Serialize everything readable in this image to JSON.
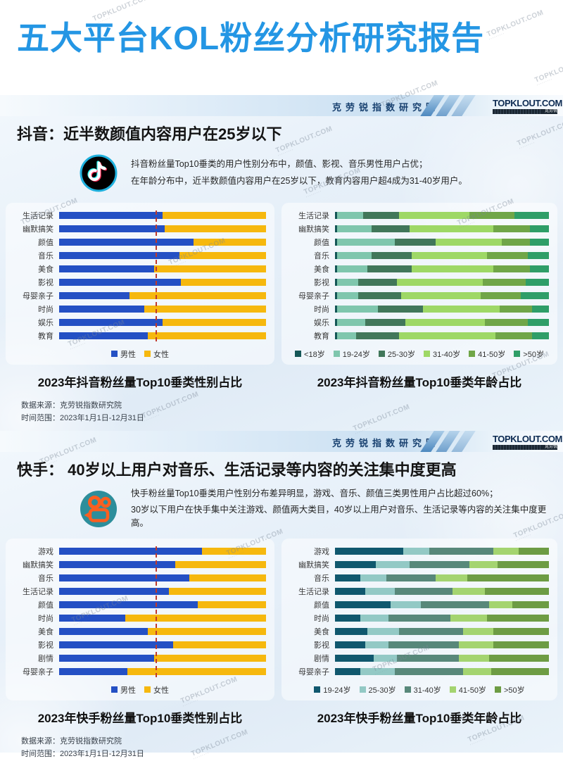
{
  "page_title": "五大平台KOL粉丝分析研究报告",
  "header": {
    "institute": "克劳锐指数研究院",
    "logo": "TOPKLOUT.COM",
    "logo_suffix": "克劳锐"
  },
  "watermark": {
    "text": "TOPKLOUT.COM"
  },
  "sections": [
    {
      "platform": "抖音",
      "heading": "抖音：近半数颜值内容用户在25岁以下",
      "description": [
        "抖音粉丝量Top10垂类的用户性别分布中，颜值、影视、音乐男性用户占优；",
        "在年龄分布中，近半数颜值内容用户在25岁以下，教育内容用户超4成为31-40岁用户。"
      ],
      "source": [
        "数据来源：克劳锐指数研究院",
        "时间范围：2023年1月1日-12月31日"
      ]
    },
    {
      "platform": "快手",
      "heading": "快手： 40岁以上用户对音乐、生活记录等内容的关注集中度更高",
      "description": [
        "快手粉丝量Top10垂类用户性别分布差异明显，游戏、音乐、颜值三类男性用户占比超过60%；",
        "30岁以下用户在快手集中关注游戏、颜值两大类目，40岁以上用户对音乐、生活记录等内容的关注集中度更高。"
      ],
      "source": [
        "数据来源：克劳锐指数研究院",
        "时间范围：2023年1月1日-12月31日"
      ]
    }
  ],
  "chart_data": [
    {
      "id": "douyin-gender",
      "type": "bar",
      "stacked": true,
      "orientation": "horizontal",
      "title": "2023年抖音粉丝量Top10垂类性别占比",
      "unit": "%",
      "xlim": [
        0,
        100
      ],
      "grid": false,
      "legend_position": "bottom",
      "reference_line": {
        "value": 46.5,
        "style": "dashed",
        "color": "#c0392b"
      },
      "categories": [
        "生活记录",
        "幽默搞笑",
        "颜值",
        "音乐",
        "美食",
        "影视",
        "母婴亲子",
        "时尚",
        "娱乐",
        "教育"
      ],
      "series": [
        {
          "name": "男性",
          "color": "#2450c4",
          "values": [
            50,
            51,
            65,
            58,
            46,
            59,
            34,
            41,
            50,
            43
          ]
        },
        {
          "name": "女性",
          "color": "#f6b80e",
          "values": [
            50,
            49,
            35,
            42,
            54,
            41,
            66,
            59,
            50,
            57
          ]
        }
      ]
    },
    {
      "id": "douyin-age",
      "type": "bar",
      "stacked": true,
      "orientation": "horizontal",
      "title": "2023年抖音粉丝量Top10垂类年龄占比",
      "unit": "%",
      "xlim": [
        0,
        100
      ],
      "grid": false,
      "legend_position": "bottom",
      "categories": [
        "生活记录",
        "幽默搞笑",
        "颜值",
        "音乐",
        "美食",
        "影视",
        "母婴亲子",
        "时尚",
        "娱乐",
        "教育"
      ],
      "series": [
        {
          "name": "<18岁",
          "color": "#155757",
          "values": [
            1,
            1,
            1,
            1,
            1,
            1,
            1,
            1,
            1,
            1
          ]
        },
        {
          "name": "19-24岁",
          "color": "#7fc6ad",
          "values": [
            12,
            16,
            27,
            16,
            14,
            10,
            10,
            19,
            13,
            9
          ]
        },
        {
          "name": "25-30岁",
          "color": "#41775a",
          "values": [
            17,
            18,
            19,
            19,
            21,
            18,
            20,
            21,
            19,
            20
          ]
        },
        {
          "name": "31-40岁",
          "color": "#9ed866",
          "values": [
            33,
            39,
            31,
            35,
            38,
            40,
            37,
            36,
            37,
            45
          ]
        },
        {
          "name": "41-50岁",
          "color": "#70a648",
          "values": [
            21,
            17,
            13,
            19,
            17,
            20,
            19,
            15,
            20,
            17
          ]
        },
        {
          "name": ">50岁",
          "color": "#2f9e68",
          "values": [
            16,
            9,
            9,
            10,
            9,
            11,
            13,
            8,
            10,
            8
          ]
        }
      ]
    },
    {
      "id": "kuaishou-gender",
      "type": "bar",
      "stacked": true,
      "orientation": "horizontal",
      "title": "2023年快手粉丝量Top10垂类性别占比",
      "unit": "%",
      "xlim": [
        0,
        100
      ],
      "grid": false,
      "legend_position": "bottom",
      "reference_line": {
        "value": 46.5,
        "style": "dashed",
        "color": "#c0392b"
      },
      "categories": [
        "游戏",
        "幽默搞笑",
        "音乐",
        "生活记录",
        "颜值",
        "时尚",
        "美食",
        "影视",
        "剧情",
        "母婴亲子"
      ],
      "series": [
        {
          "name": "男性",
          "color": "#2450c4",
          "values": [
            69,
            56,
            63,
            53,
            67,
            32,
            43,
            55,
            46,
            33
          ]
        },
        {
          "name": "女性",
          "color": "#f6b80e",
          "values": [
            31,
            44,
            37,
            47,
            33,
            68,
            57,
            45,
            54,
            67
          ]
        }
      ]
    },
    {
      "id": "kuaishou-age",
      "type": "bar",
      "stacked": true,
      "orientation": "horizontal",
      "title": "2023年快手粉丝量Top10垂类年龄占比",
      "unit": "%",
      "xlim": [
        0,
        100
      ],
      "grid": false,
      "legend_position": "bottom",
      "categories": [
        "游戏",
        "幽默搞笑",
        "音乐",
        "生活记录",
        "颜值",
        "时尚",
        "美食",
        "影视",
        "剧情",
        "母婴亲子"
      ],
      "series": [
        {
          "name": "19-24岁",
          "color": "#10586e",
          "values": [
            32,
            19,
            12,
            14,
            26,
            12,
            15,
            14,
            18,
            12
          ]
        },
        {
          "name": "25-30岁",
          "color": "#93c9c5",
          "values": [
            12,
            16,
            12,
            14,
            14,
            13,
            15,
            11,
            11,
            16
          ]
        },
        {
          "name": "31-40岁",
          "color": "#58887a",
          "values": [
            30,
            28,
            23,
            27,
            32,
            29,
            30,
            33,
            29,
            32
          ]
        },
        {
          "name": "41-50岁",
          "color": "#a4d470",
          "values": [
            12,
            13,
            15,
            15,
            11,
            17,
            14,
            16,
            14,
            13
          ]
        },
        {
          "name": ">50岁",
          "color": "#6d9c44",
          "values": [
            14,
            24,
            38,
            30,
            17,
            29,
            26,
            26,
            28,
            27
          ]
        }
      ]
    }
  ]
}
